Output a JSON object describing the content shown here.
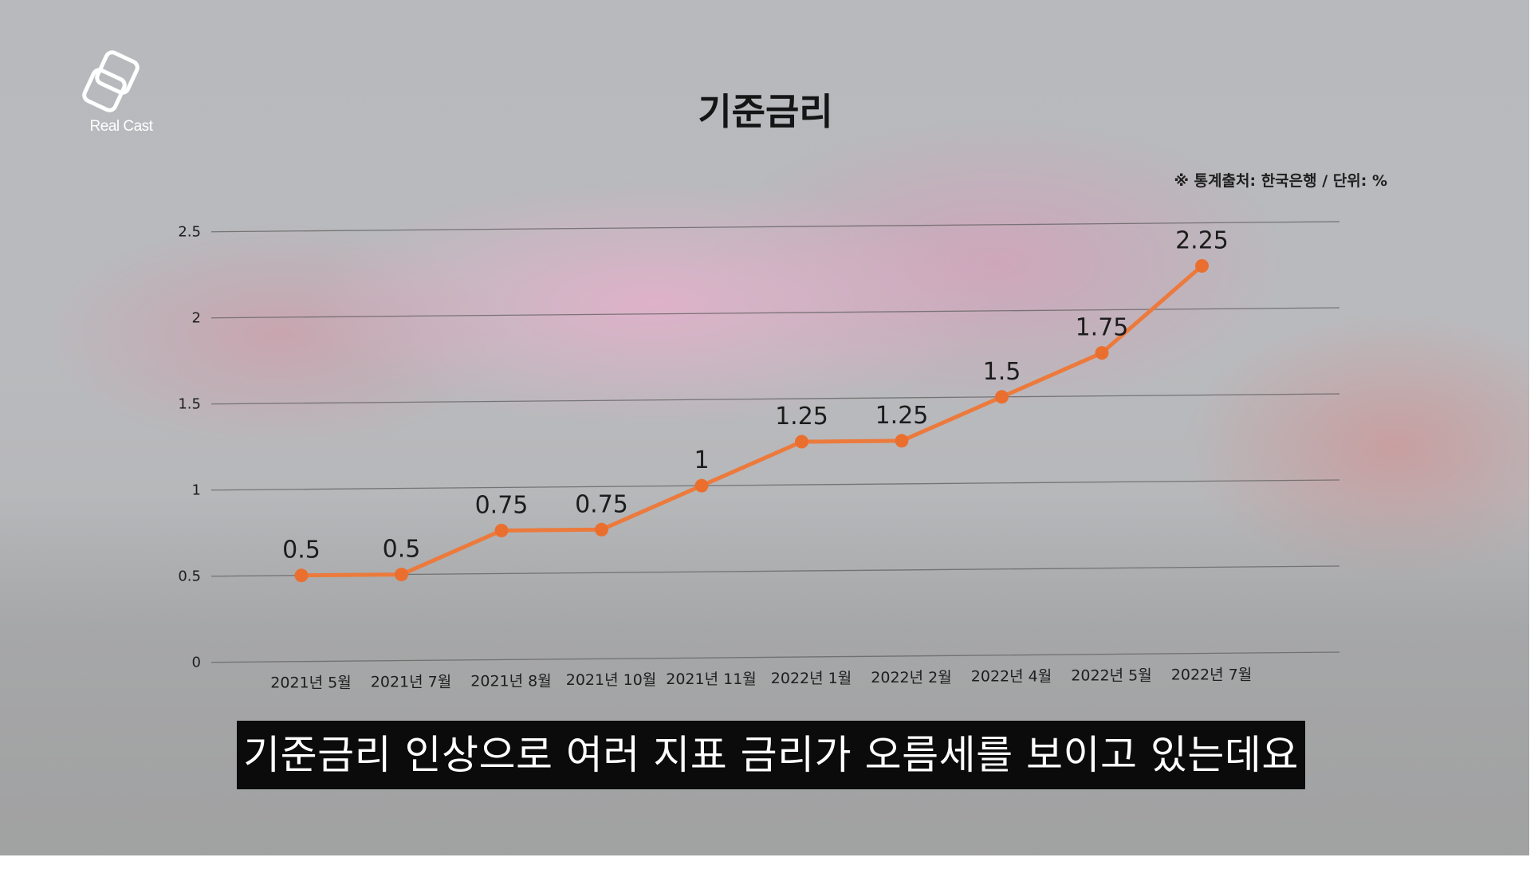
{
  "logo": {
    "name": "Real Cast"
  },
  "subtitle": "기준금리 인상으로 여러 지표 금리가 오름세를 보이고 있는데요",
  "colors": {
    "line": "#ec7a3c",
    "point": "#ea6f2e",
    "grid": "#5d5d5d",
    "subtitle_bg": "#0b0b0b"
  },
  "chart_data": {
    "type": "line",
    "title": "기준금리",
    "note": "※ 통계출처: 한국은행 / 단위: %",
    "categories": [
      "2021년 5월",
      "2021년 7월",
      "2021년 8월",
      "2021년 10월",
      "2021년 11월",
      "2022년 1월",
      "2022년 2월",
      "2022년 4월",
      "2022년 5월",
      "2022년 7월"
    ],
    "values": [
      0.5,
      0.5,
      0.75,
      0.75,
      1,
      1.25,
      1.25,
      1.5,
      1.75,
      2.25
    ],
    "data_labels": [
      "0.5",
      "0.5",
      "0.75",
      "0.75",
      "1",
      "1.25",
      "1.25",
      "1.5",
      "1.75",
      "2.25"
    ],
    "yticks": [
      0,
      0.5,
      1,
      1.5,
      2,
      2.5
    ],
    "ytick_labels": [
      "0",
      "0.5",
      "1",
      "1.5",
      "2",
      "2.5"
    ],
    "ylim": [
      0,
      2.5
    ],
    "grid": true,
    "legend": "none"
  }
}
